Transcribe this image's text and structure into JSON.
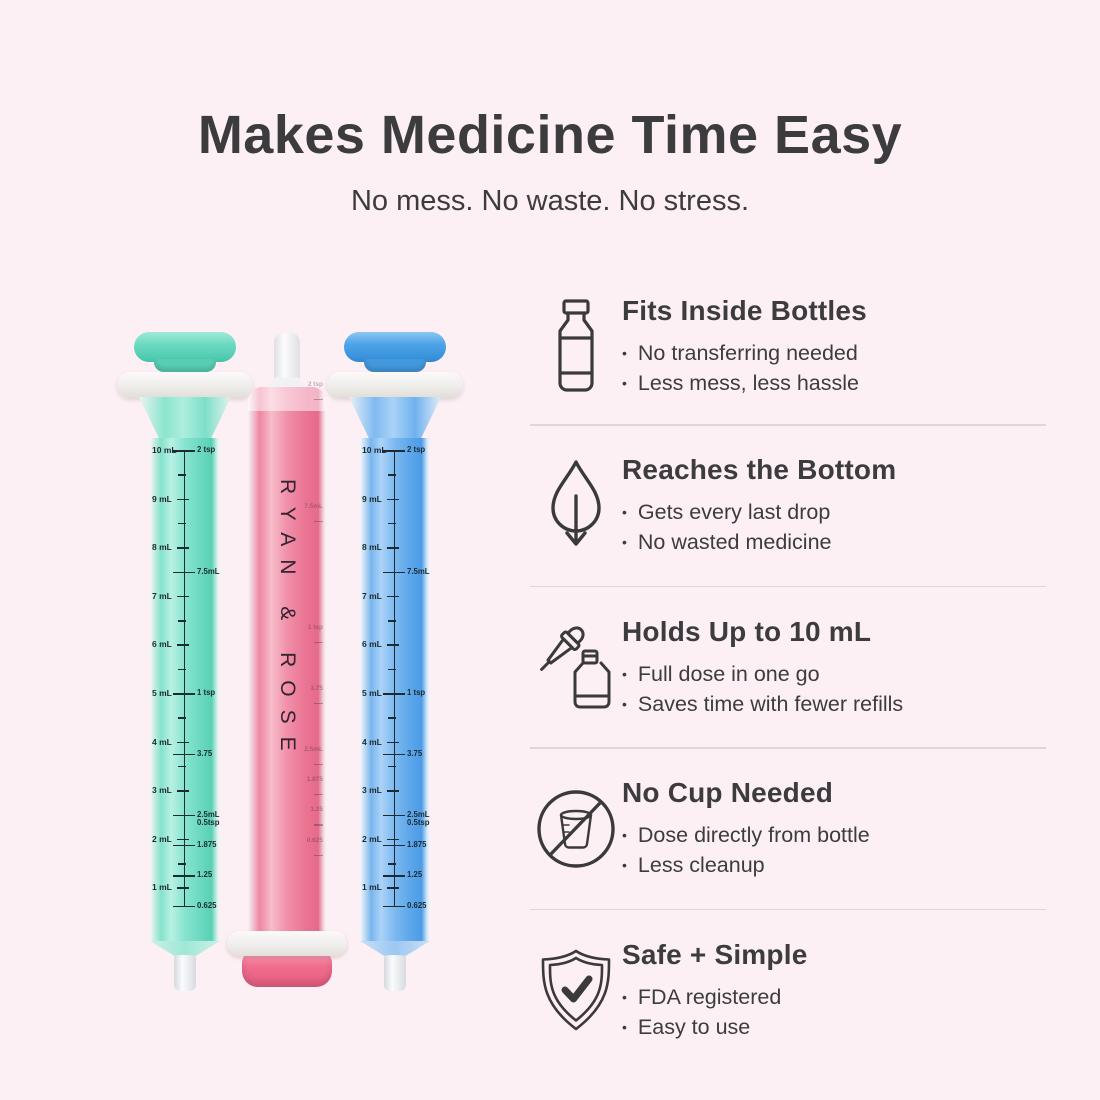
{
  "header": {
    "title": "Makes Medicine Time Easy",
    "subtitle": "No mess. No waste. No stress."
  },
  "glyphs": {
    "bullet": "•"
  },
  "features": [
    {
      "icon": "medicine-bottle-icon",
      "title": "Fits Inside Bottles",
      "bullets": [
        "No transferring needed",
        "Less mess, less hassle"
      ]
    },
    {
      "icon": "droplet-arrow-icon",
      "title": "Reaches the Bottom",
      "bullets": [
        "Gets every last drop",
        "No wasted medicine"
      ]
    },
    {
      "icon": "dropper-bottle-icon",
      "title": "Holds Up to 10 mL",
      "bullets": [
        "Full dose in one go",
        "Saves time with fewer refills"
      ]
    },
    {
      "icon": "no-cup-icon",
      "title": "No Cup Needed",
      "bullets": [
        "Dose directly from bottle",
        "Less cleanup"
      ]
    },
    {
      "icon": "shield-check-icon",
      "title": "Safe + Simple",
      "bullets": [
        "FDA registered",
        "Easy to use"
      ]
    }
  ],
  "product": {
    "brand": "RYAN & ROSE",
    "scale": {
      "ml_marks": [
        {
          "ml": 10,
          "label": "10 mL"
        },
        {
          "ml": 9,
          "label": "9 mL"
        },
        {
          "ml": 8,
          "label": "8 mL"
        },
        {
          "ml": 7,
          "label": "7 mL"
        },
        {
          "ml": 6,
          "label": "6 mL"
        },
        {
          "ml": 5,
          "label": "5 mL"
        },
        {
          "ml": 4,
          "label": "4 mL"
        },
        {
          "ml": 3,
          "label": "3 mL"
        },
        {
          "ml": 2,
          "label": "2 mL"
        },
        {
          "ml": 1,
          "label": "1 mL"
        }
      ],
      "tsp_marks": [
        {
          "ml": 10,
          "labels": [
            "2 tsp"
          ]
        },
        {
          "ml": 7.5,
          "labels": [
            "7.5mL"
          ]
        },
        {
          "ml": 5,
          "labels": [
            "1 tsp"
          ]
        },
        {
          "ml": 3.75,
          "labels": [
            "3.75"
          ]
        },
        {
          "ml": 2.5,
          "labels": [
            "2.5mL",
            "0.5tsp"
          ]
        },
        {
          "ml": 1.875,
          "labels": [
            "1.875"
          ]
        },
        {
          "ml": 1.25,
          "labels": [
            "1.25"
          ]
        },
        {
          "ml": 0.625,
          "labels": [
            "0.625"
          ]
        }
      ]
    }
  },
  "theme": {
    "background": "#fdf0f5",
    "text": "#3c3c3e",
    "divider": "#ddd7da",
    "teal": "#6edac2",
    "blue": "#4da4e8",
    "pink": "#ee87a2"
  }
}
